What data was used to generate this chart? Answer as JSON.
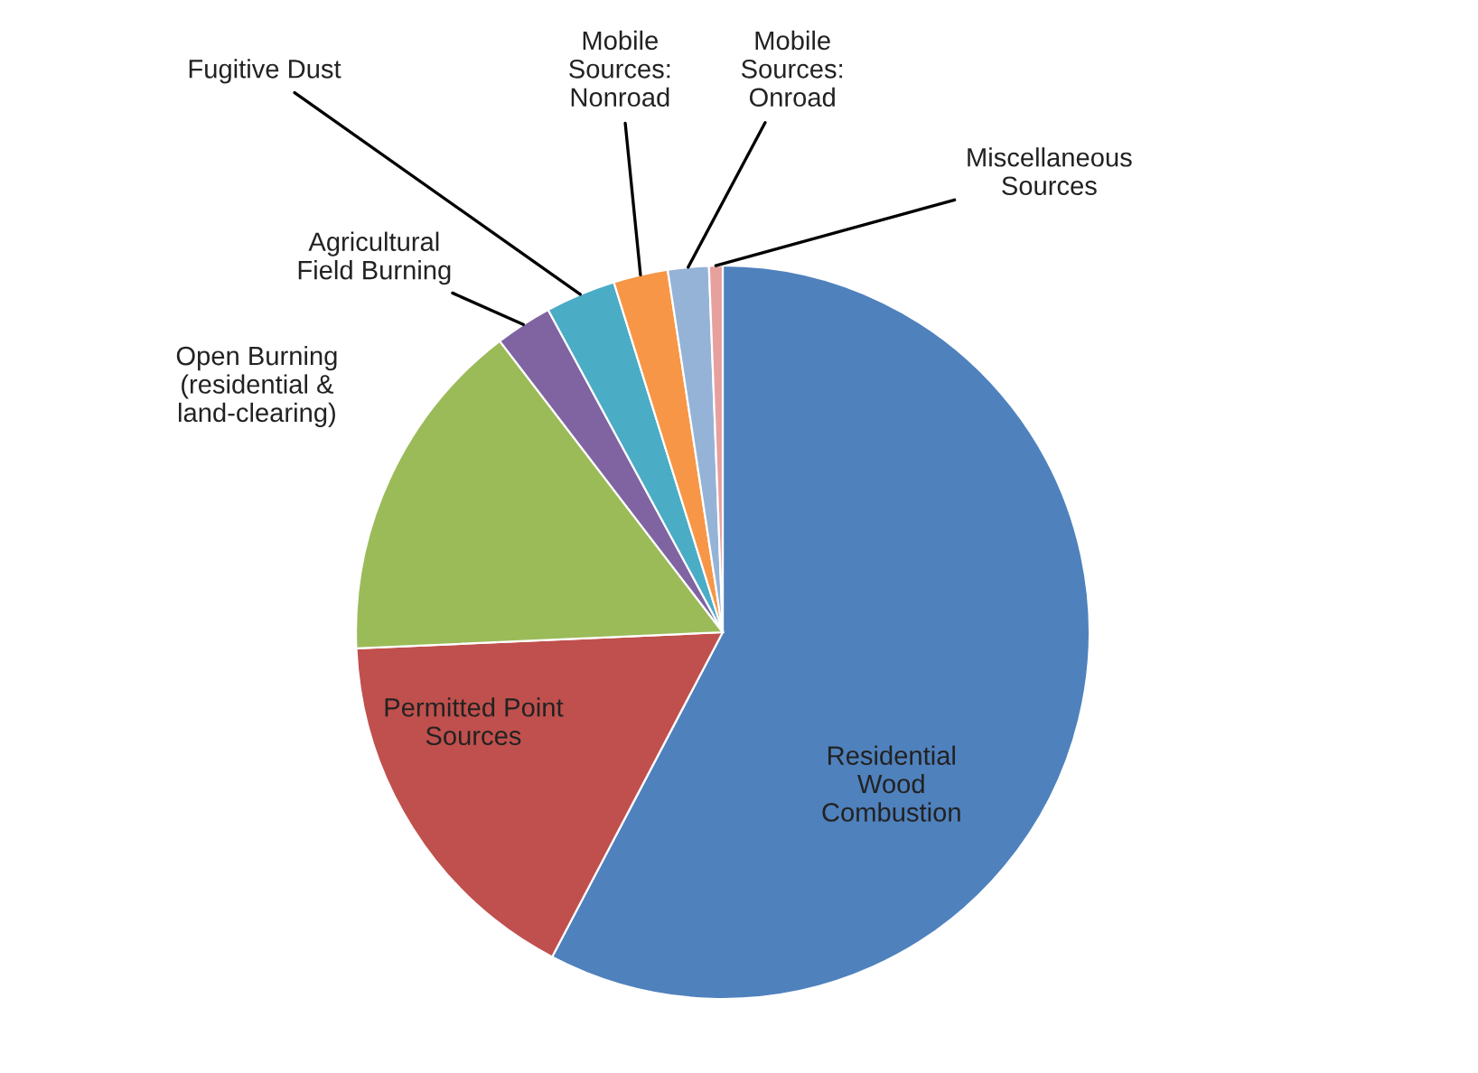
{
  "chart_data": {
    "type": "pie",
    "categories": [
      "Residential\nWood\nCombustion",
      "Permitted Point\nSources",
      "Open Burning\n(residential &\nland-clearing)",
      "Agricultural\nField Burning",
      "Fugitive Dust",
      "Mobile\nSources:\nNonroad",
      "Mobile\nSources:\nOnroad",
      "Miscellaneous\nSources"
    ],
    "values": [
      57.7,
      16.6,
      15.3,
      2.5,
      3.1,
      2.4,
      1.8,
      0.6
    ],
    "colors": [
      "#4f81bd",
      "#c0504d",
      "#9bbb59",
      "#8064a2",
      "#4bacc6",
      "#f79646",
      "#95b3d7",
      "#e6a09e"
    ]
  }
}
